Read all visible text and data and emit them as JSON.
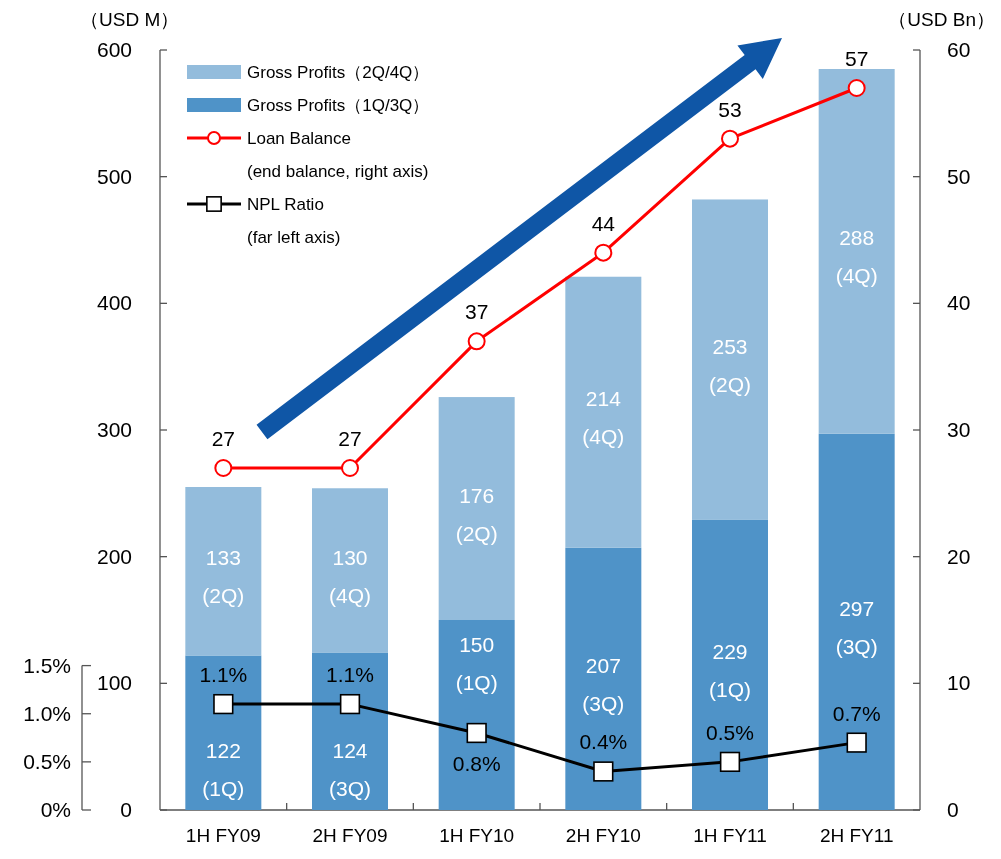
{
  "chart_data": {
    "type": "bar",
    "stacked": true,
    "categories": [
      "1H FY09",
      "2H FY09",
      "1H FY10",
      "2H FY10",
      "1H FY11",
      "2H FY11"
    ],
    "ylabel": "（USD M）",
    "y2label": "（USD Bn）",
    "ylim": [
      0,
      600
    ],
    "yticks": [
      0,
      100,
      200,
      300,
      400,
      500,
      600
    ],
    "y2lim": [
      0,
      60
    ],
    "y2ticks": [
      0,
      10,
      20,
      30,
      40,
      50,
      60
    ],
    "y3lim": [
      0,
      1.5
    ],
    "y3ticks": [
      {
        "value": 0,
        "label": "0%"
      },
      {
        "value": 0.5,
        "label": "0.5%"
      },
      {
        "value": 1.0,
        "label": "1.0%"
      },
      {
        "value": 1.5,
        "label": "1.5%"
      }
    ],
    "grid": false,
    "legend": "top left",
    "series": [
      {
        "name": "Gross Profits（1Q/3Q）",
        "color": "#4f93c8",
        "values": [
          122,
          124,
          150,
          207,
          229,
          297
        ],
        "value_labels": [
          "122\n(1Q)",
          "124\n(3Q)",
          "150\n(1Q)",
          "207\n(3Q)",
          "229\n(1Q)",
          "297\n(3Q)"
        ]
      },
      {
        "name": "Gross Profits（2Q/4Q）",
        "color": "#93bcdc",
        "values": [
          133,
          130,
          176,
          214,
          253,
          288
        ],
        "value_labels": [
          "133\n(2Q)",
          "130\n(4Q)",
          "176\n(2Q)",
          "214\n(4Q)",
          "253\n(2Q)",
          "288\n(4Q)"
        ]
      },
      {
        "name": "Loan Balance\n(end balance, right axis)",
        "type": "line",
        "axis": "y2",
        "color": "#ff0000",
        "marker": "circle",
        "values": [
          27,
          27,
          37,
          44,
          53,
          57
        ],
        "value_labels": [
          "27",
          "27",
          "37",
          "44",
          "53",
          "57"
        ]
      },
      {
        "name": "NPL Ratio\n(far left axis)",
        "type": "line",
        "axis": "y3",
        "color": "#000000",
        "marker": "square",
        "values": [
          1.1,
          1.1,
          0.8,
          0.4,
          0.5,
          0.7
        ],
        "value_labels": [
          "1.1%",
          "1.1%",
          "0.8%",
          "0.4%",
          "0.5%",
          "0.7%"
        ]
      }
    ]
  }
}
